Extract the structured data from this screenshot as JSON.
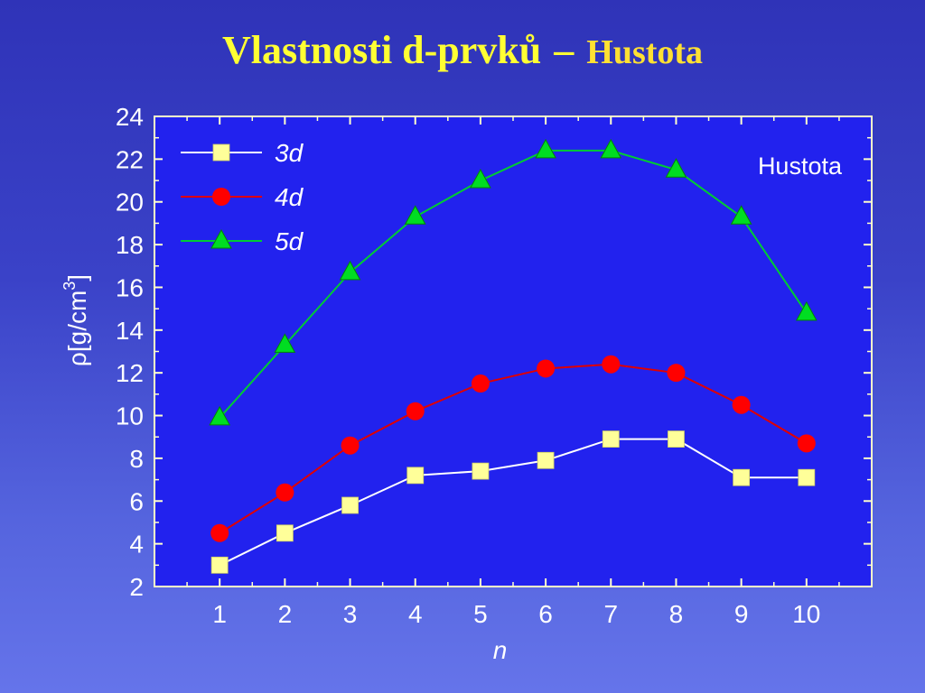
{
  "slide": {
    "title_main": "Vlastnosti d-prvků",
    "title_sep": "–",
    "title_sub": "Hustota"
  },
  "chart_data": {
    "type": "line",
    "title": "Hustota",
    "xlabel": "n",
    "ylabel_symbol": "ρ",
    "ylabel_unit_prefix": "[g/cm",
    "ylabel_unit_exp": "3",
    "ylabel_unit_suffix": "]",
    "x": [
      1,
      2,
      3,
      4,
      5,
      6,
      7,
      8,
      9,
      10
    ],
    "xlim": [
      0,
      11
    ],
    "ylim": [
      2,
      24
    ],
    "yticks": [
      2,
      4,
      6,
      8,
      10,
      12,
      14,
      16,
      18,
      20,
      22,
      24
    ],
    "grid": false,
    "legend_position": "top-left",
    "series": [
      {
        "name": "3d",
        "marker": "square",
        "color": "#ffffff",
        "marker_color": "#ffff99",
        "values": [
          3.0,
          4.5,
          5.8,
          7.2,
          7.4,
          7.9,
          8.9,
          8.9,
          7.1,
          7.1
        ]
      },
      {
        "name": "4d",
        "marker": "circle",
        "color": "#e00000",
        "marker_color": "#ff0000",
        "values": [
          4.5,
          6.4,
          8.6,
          10.2,
          11.5,
          12.2,
          12.4,
          12.0,
          10.5,
          8.7
        ]
      },
      {
        "name": "5d",
        "marker": "triangle",
        "color": "#00cc33",
        "marker_color": "#00dd22",
        "values": [
          9.9,
          13.3,
          16.7,
          19.3,
          21.0,
          22.4,
          22.4,
          21.5,
          19.3,
          14.8
        ]
      }
    ]
  },
  "colors": {
    "plot_background": "#2222ee",
    "axis_frame": "#ffffcc",
    "title": "#ffff33",
    "text": "#ffffff"
  }
}
